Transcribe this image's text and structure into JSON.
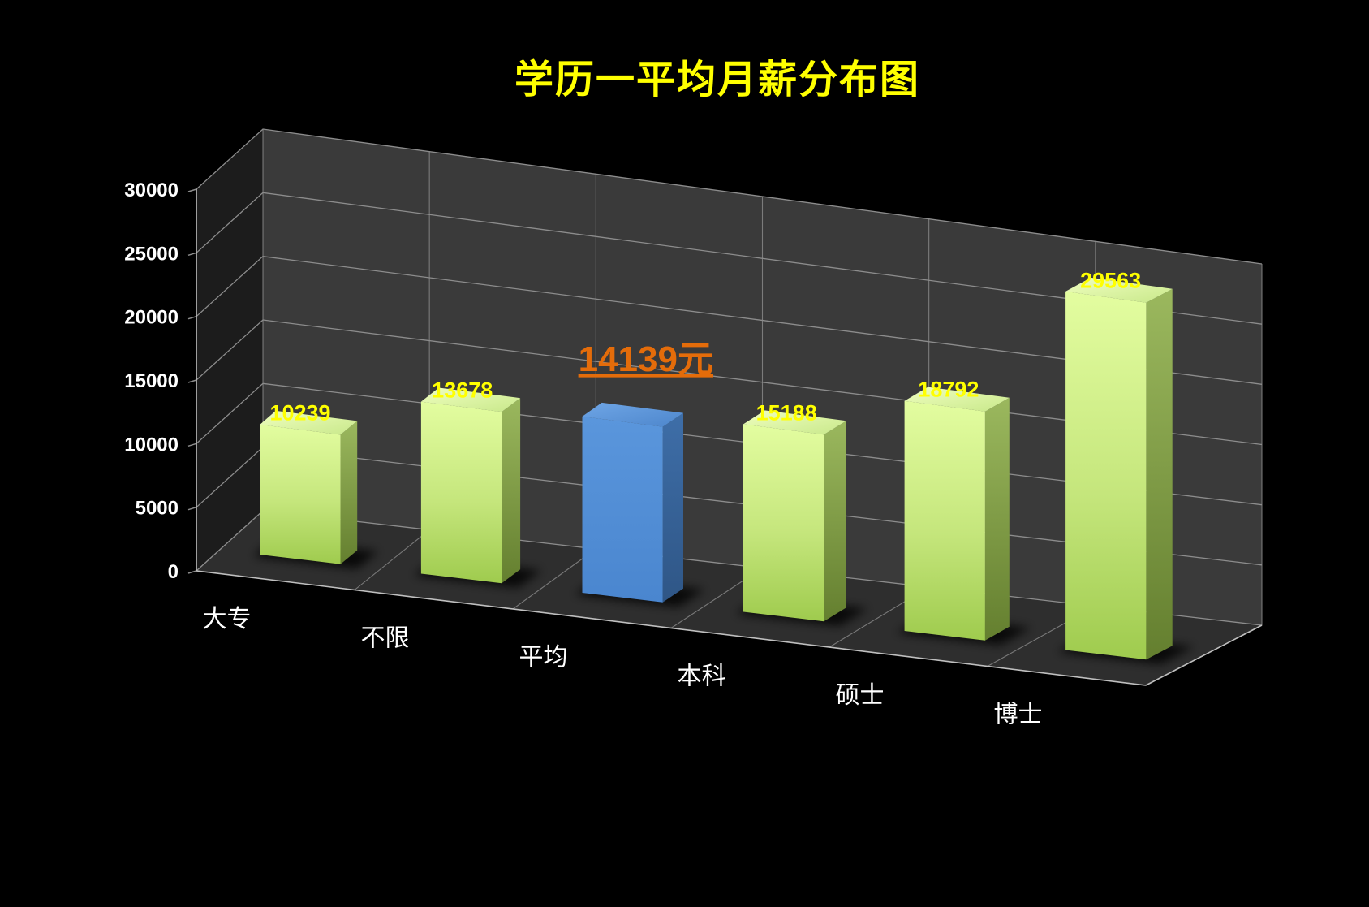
{
  "chart_data": {
    "type": "bar",
    "title": "学历一平均月薪分布图",
    "categories": [
      "大专",
      "不限",
      "平均",
      "本科",
      "硕士",
      "博士"
    ],
    "values": [
      10239,
      13678,
      14139,
      15188,
      18792,
      29563
    ],
    "data_labels": [
      "10239",
      "13678",
      "14139元",
      "15188",
      "18792",
      "29563"
    ],
    "highlight_index": 2,
    "ylim": [
      0,
      30000
    ],
    "yticks": [
      "0",
      "5000",
      "10000",
      "15000",
      "20000",
      "25000",
      "30000"
    ],
    "grid": true,
    "style": "3d-column",
    "colors": {
      "bar": "#c4e67c",
      "bar_dark": "#76923c",
      "highlight": "#4f8ed5",
      "highlight_dark": "#365f91",
      "data_label": "#ffff00",
      "highlight_label": "#e46c0a",
      "wall": "#3a3a3a",
      "floor": "#2e2e2e",
      "grid": "#8c8c8c",
      "background": "#000000"
    }
  }
}
